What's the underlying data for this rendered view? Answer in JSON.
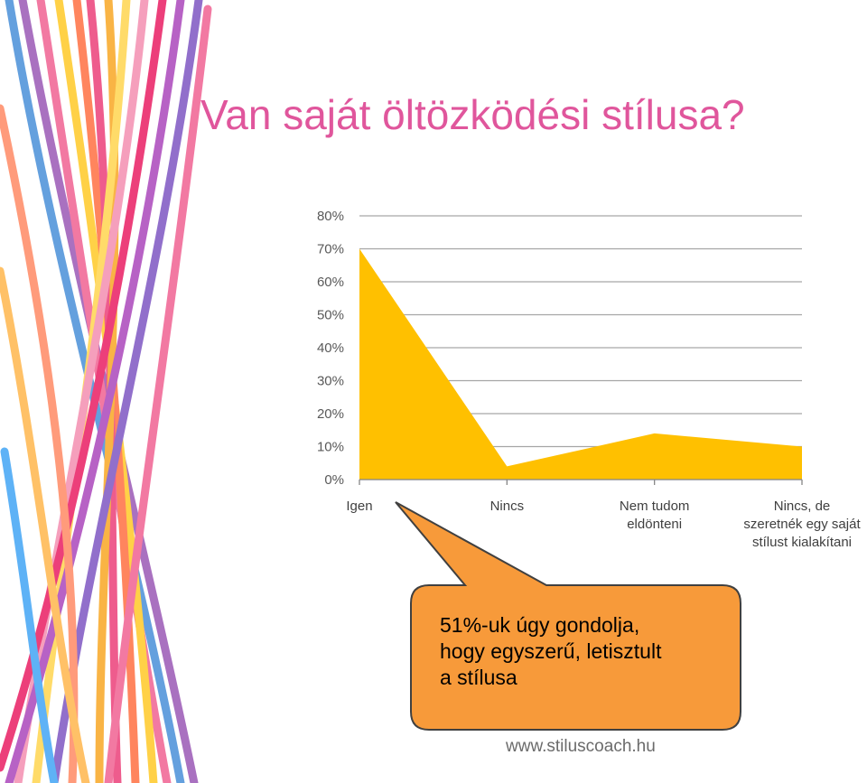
{
  "chart_data": {
    "type": "area",
    "title": "Van saját öltözködési stílusa?",
    "categories": [
      "Igen",
      "Nincs",
      "Nem tudom\neldönteni",
      "Nincs, de\nszeretnék egy saját\nstílust kialakítani"
    ],
    "values": [
      70,
      4,
      14,
      10
    ],
    "color": "#ffc000",
    "ylim": [
      0,
      80
    ],
    "yticks": [
      {
        "value": 0,
        "label": "0%"
      },
      {
        "value": 10,
        "label": "10%"
      },
      {
        "value": 20,
        "label": "20%"
      },
      {
        "value": 30,
        "label": "30%"
      },
      {
        "value": 40,
        "label": "40%"
      },
      {
        "value": 50,
        "label": "50%"
      },
      {
        "value": 60,
        "label": "60%"
      },
      {
        "value": 70,
        "label": "70%"
      },
      {
        "value": 80,
        "label": "80%"
      }
    ],
    "grid": true
  },
  "callout": {
    "text": "51%-uk úgy gondolja,\nhogy egyszerű, letisztult\na stílusa"
  },
  "footer": {
    "text": "www.stiluscoach.hu"
  }
}
